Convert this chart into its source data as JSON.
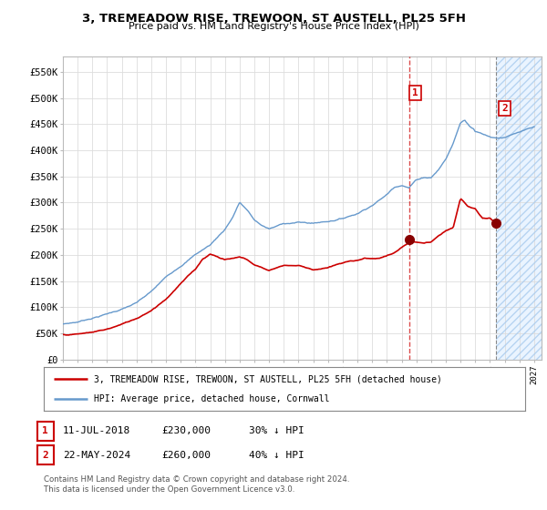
{
  "title": "3, TREMEADOW RISE, TREWOON, ST AUSTELL, PL25 5FH",
  "subtitle": "Price paid vs. HM Land Registry's House Price Index (HPI)",
  "ylim": [
    0,
    580000
  ],
  "yticks": [
    0,
    50000,
    100000,
    150000,
    200000,
    250000,
    300000,
    350000,
    400000,
    450000,
    500000,
    550000
  ],
  "xlim_start": 1995.0,
  "xlim_end": 2027.5,
  "transaction1": {
    "date": "11-JUL-2018",
    "price": 230000,
    "label": "30% ↓ HPI",
    "num": "1"
  },
  "transaction2": {
    "date": "22-MAY-2024",
    "price": 260000,
    "label": "40% ↓ HPI",
    "num": "2"
  },
  "red_line_color": "#cc0000",
  "blue_line_color": "#6699cc",
  "vline1_x": 2018.53,
  "vline2_x": 2024.39,
  "hatch_start": 2024.39,
  "legend_label1": "3, TREMEADOW RISE, TREWOON, ST AUSTELL, PL25 5FH (detached house)",
  "legend_label2": "HPI: Average price, detached house, Cornwall",
  "footer": "Contains HM Land Registry data © Crown copyright and database right 2024.\nThis data is licensed under the Open Government Licence v3.0.",
  "grid_color": "#dddddd",
  "background_color": "#ffffff",
  "hpi_knots_x": [
    1995,
    1996,
    1997,
    1998,
    1999,
    2000,
    2001,
    2002,
    2003,
    2004,
    2005,
    2006,
    2006.5,
    2007,
    2007.5,
    2008,
    2008.5,
    2009,
    2009.5,
    2010,
    2011,
    2012,
    2013,
    2014,
    2015,
    2016,
    2017,
    2017.5,
    2018,
    2018.5,
    2019,
    2019.5,
    2020,
    2020.5,
    2021,
    2021.5,
    2022,
    2022.3,
    2022.6,
    2022.9,
    2023,
    2023.5,
    2024,
    2024.5,
    2025,
    2026,
    2027
  ],
  "hpi_knots_y": [
    68000,
    72000,
    80000,
    88000,
    97000,
    108000,
    128000,
    155000,
    178000,
    200000,
    218000,
    248000,
    270000,
    300000,
    285000,
    265000,
    255000,
    248000,
    252000,
    258000,
    260000,
    258000,
    262000,
    268000,
    278000,
    295000,
    315000,
    330000,
    335000,
    330000,
    345000,
    350000,
    350000,
    365000,
    385000,
    415000,
    455000,
    460000,
    450000,
    445000,
    440000,
    435000,
    430000,
    428000,
    430000,
    438000,
    445000
  ],
  "prop_knots_x": [
    1995,
    1996,
    1997,
    1998,
    1999,
    2000,
    2001,
    2002,
    2003,
    2004,
    2004.5,
    2005,
    2006,
    2007,
    2007.5,
    2008,
    2009,
    2010,
    2011,
    2012,
    2013,
    2014,
    2015,
    2015.5,
    2016,
    2016.5,
    2017,
    2017.5,
    2018,
    2018.53,
    2019,
    2019.5,
    2020,
    2020.5,
    2021,
    2021.5,
    2022,
    2022.5,
    2023,
    2023.5,
    2024,
    2024.39
  ],
  "prop_knots_y": [
    48000,
    49000,
    52000,
    58000,
    67000,
    78000,
    95000,
    118000,
    148000,
    175000,
    195000,
    205000,
    195000,
    200000,
    195000,
    185000,
    175000,
    185000,
    185000,
    178000,
    182000,
    190000,
    195000,
    200000,
    198000,
    200000,
    205000,
    210000,
    220000,
    230000,
    230000,
    228000,
    230000,
    240000,
    250000,
    255000,
    310000,
    295000,
    290000,
    270000,
    270000,
    260000
  ]
}
